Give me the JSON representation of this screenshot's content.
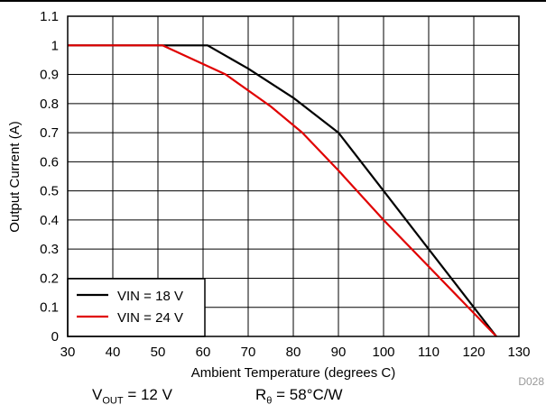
{
  "chart_data": {
    "type": "line",
    "xlabel": "Ambient Temperature (degrees C)",
    "ylabel": "Output Current (A)",
    "xlim": [
      30,
      130
    ],
    "ylim": [
      0,
      1.1
    ],
    "xticks": [
      "30",
      "40",
      "50",
      "60",
      "70",
      "80",
      "90",
      "100",
      "110",
      "120",
      "130"
    ],
    "yticks": [
      "0",
      "0.1",
      "0.2",
      "0.3",
      "0.4",
      "0.5",
      "0.6",
      "0.7",
      "0.8",
      "0.9",
      "1",
      "1.1"
    ],
    "grid": true,
    "legend_position": "bottom-left",
    "series": [
      {
        "name": "VIN = 18 V",
        "color": "#000000",
        "x": [
          30,
          61,
          70,
          80,
          90,
          100,
          110,
          125
        ],
        "y": [
          1.0,
          1.0,
          0.92,
          0.82,
          0.7,
          0.5,
          0.3,
          0.0
        ]
      },
      {
        "name": "VIN = 24 V",
        "color": "#e00000",
        "x": [
          30,
          51,
          65,
          75,
          82,
          90,
          100,
          110,
          125
        ],
        "y": [
          1.0,
          1.0,
          0.9,
          0.79,
          0.7,
          0.57,
          0.4,
          0.24,
          0.0
        ]
      }
    ],
    "annotations": {
      "figure_id": "D028"
    }
  },
  "conditions": {
    "vout_symbol": "V",
    "vout_subscript": "OUT",
    "vout_value": "= 12 V",
    "rtheta_symbol": "R",
    "rtheta_subscript": "θ",
    "rtheta_value": "= 58°C/W"
  }
}
